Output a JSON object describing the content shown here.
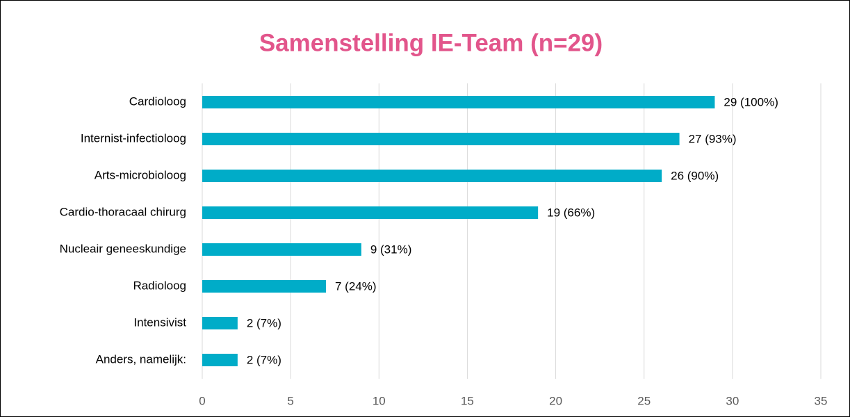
{
  "chart_data": {
    "type": "bar",
    "orientation": "horizontal",
    "title": "Samenstelling IE-Team (n=29)",
    "categories": [
      "Cardioloog",
      "Internist-infectioloog",
      "Arts-microbioloog",
      "Cardio-thoracaal chirurg",
      "Nucleair geneeskundige",
      "Radioloog",
      "Intensivist",
      "Anders, namelijk:"
    ],
    "values": [
      29,
      27,
      26,
      19,
      9,
      7,
      2,
      2
    ],
    "value_labels": [
      "29 (100%)",
      "27 (93%)",
      "26 (90%)",
      "19 (66%)",
      "9 (31%)",
      "7 (24%)",
      "2 (7%)",
      "2 (7%)"
    ],
    "color": "#00acc8",
    "xlim": [
      0,
      35
    ],
    "xticks": [
      0,
      5,
      10,
      15,
      20,
      25,
      30,
      35
    ],
    "grid": true
  }
}
